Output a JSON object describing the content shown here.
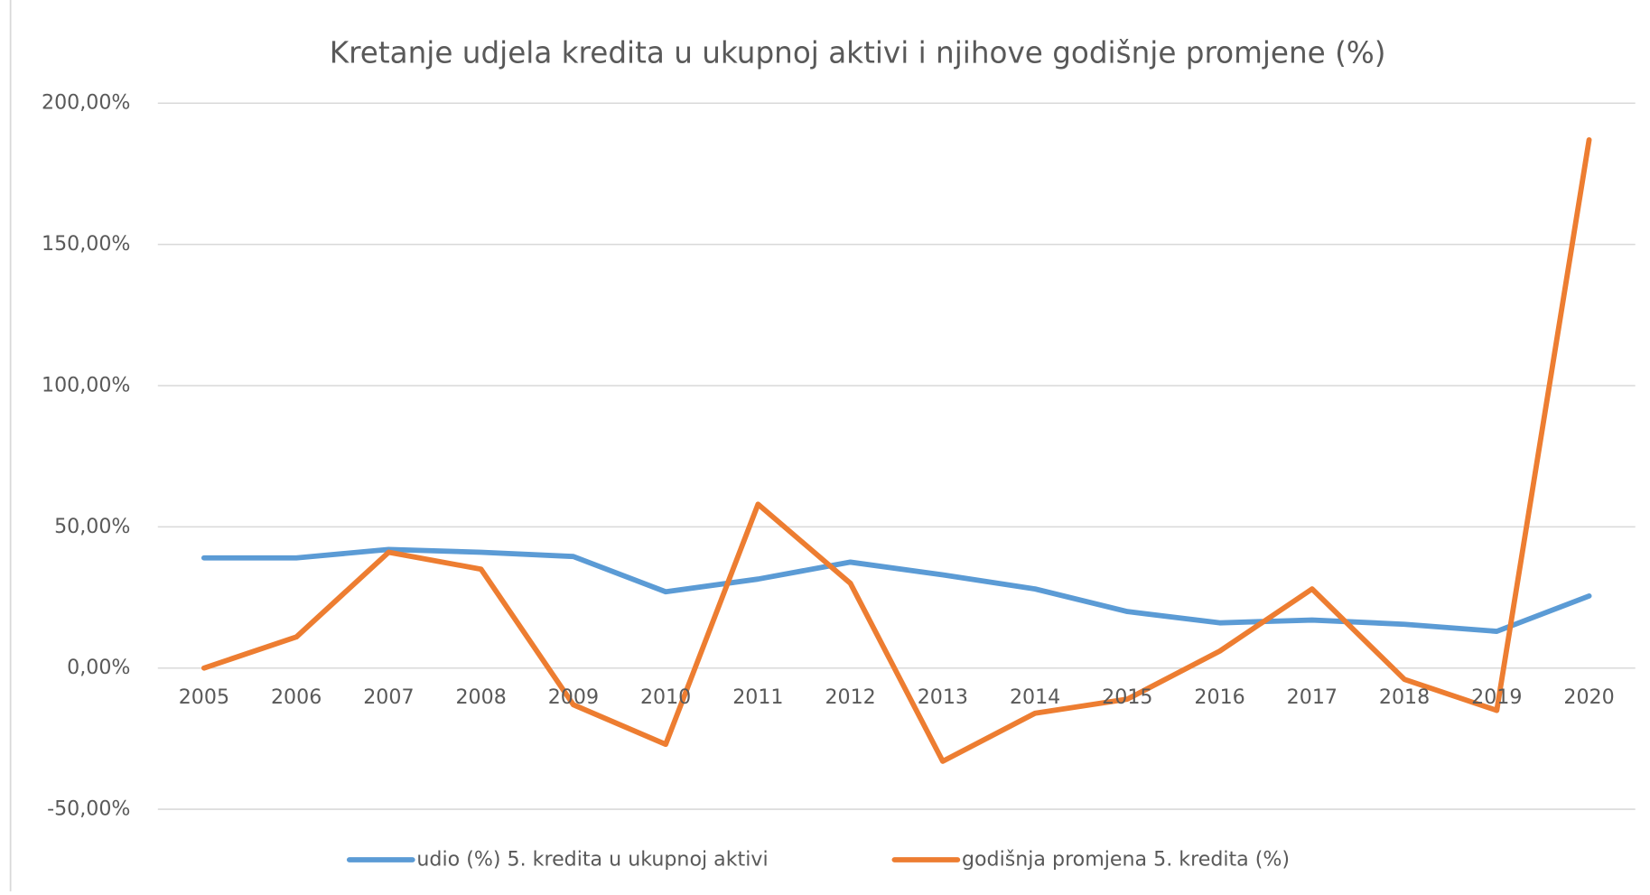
{
  "chart_data": {
    "type": "line",
    "title": "Kretanje udjela kredita u ukupnoj aktivi i njihove godišnje promjene (%)",
    "categories": [
      "2005",
      "2006",
      "2007",
      "2008",
      "2009",
      "2010",
      "2011",
      "2012",
      "2013",
      "2014",
      "2015",
      "2016",
      "2017",
      "2018",
      "2019",
      "2020"
    ],
    "series": [
      {
        "name": "udio (%) 5. kredita u ukupnoj aktivi",
        "color": "#5b9bd5",
        "values": [
          39,
          39,
          42,
          41,
          39.5,
          27,
          31.5,
          37.5,
          33,
          28,
          20,
          16,
          17,
          15.5,
          13,
          25.5
        ]
      },
      {
        "name": "godišnja promjena 5. kredita (%)",
        "color": "#ed7d31",
        "values": [
          0,
          11,
          41,
          35,
          -13,
          -27,
          58,
          30,
          -33,
          -16,
          -11,
          6,
          28,
          -4,
          -15,
          187
        ]
      }
    ],
    "ylim": [
      -50,
      200
    ],
    "yticks": [
      {
        "value": -50,
        "label": "-50,00%"
      },
      {
        "value": 0,
        "label": "0,00%"
      },
      {
        "value": 50,
        "label": "50,00%"
      },
      {
        "value": 100,
        "label": "100,00%"
      },
      {
        "value": 150,
        "label": "150,00%"
      },
      {
        "value": 200,
        "label": "200,00%"
      }
    ],
    "grid": true,
    "legend": "bottom"
  }
}
